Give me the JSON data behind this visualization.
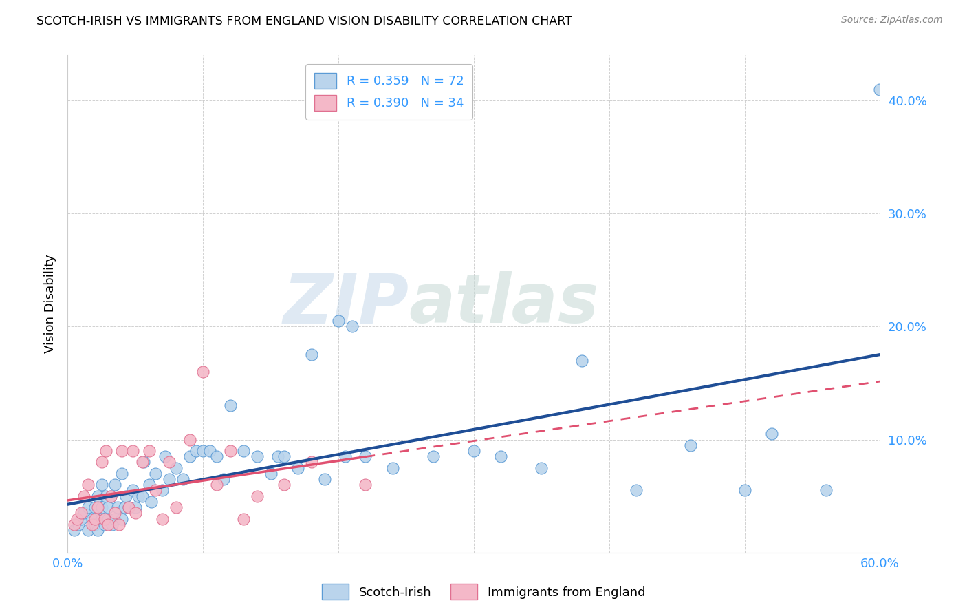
{
  "title": "SCOTCH-IRISH VS IMMIGRANTS FROM ENGLAND VISION DISABILITY CORRELATION CHART",
  "source": "Source: ZipAtlas.com",
  "ylabel": "Vision Disability",
  "yticks": [
    0.0,
    0.1,
    0.2,
    0.3,
    0.4
  ],
  "ytick_labels": [
    "",
    "10.0%",
    "20.0%",
    "30.0%",
    "40.0%"
  ],
  "xlim": [
    0.0,
    0.6
  ],
  "ylim": [
    0.0,
    0.44
  ],
  "blue_R": 0.359,
  "blue_N": 72,
  "pink_R": 0.39,
  "pink_N": 34,
  "blue_scatter_color": "#bad4ec",
  "blue_edge_color": "#5b9bd5",
  "pink_scatter_color": "#f4b8c8",
  "pink_edge_color": "#e07090",
  "blue_line_color": "#1f4e96",
  "pink_line_color": "#e05070",
  "text_color": "#3399ff",
  "legend_label_blue": "Scotch-Irish",
  "legend_label_pink": "Immigrants from England",
  "blue_scatter_x": [
    0.005,
    0.008,
    0.01,
    0.012,
    0.015,
    0.015,
    0.018,
    0.02,
    0.02,
    0.022,
    0.022,
    0.025,
    0.025,
    0.025,
    0.027,
    0.028,
    0.03,
    0.03,
    0.032,
    0.033,
    0.035,
    0.035,
    0.037,
    0.04,
    0.04,
    0.042,
    0.043,
    0.045,
    0.048,
    0.05,
    0.052,
    0.055,
    0.056,
    0.06,
    0.062,
    0.065,
    0.07,
    0.072,
    0.075,
    0.08,
    0.085,
    0.09,
    0.095,
    0.1,
    0.105,
    0.11,
    0.115,
    0.12,
    0.13,
    0.14,
    0.15,
    0.155,
    0.16,
    0.17,
    0.18,
    0.19,
    0.2,
    0.205,
    0.21,
    0.22,
    0.24,
    0.27,
    0.3,
    0.32,
    0.35,
    0.38,
    0.42,
    0.46,
    0.5,
    0.52,
    0.56,
    0.6
  ],
  "blue_scatter_y": [
    0.02,
    0.025,
    0.03,
    0.035,
    0.02,
    0.04,
    0.03,
    0.025,
    0.04,
    0.02,
    0.05,
    0.03,
    0.04,
    0.06,
    0.025,
    0.05,
    0.03,
    0.04,
    0.05,
    0.025,
    0.03,
    0.06,
    0.04,
    0.03,
    0.07,
    0.04,
    0.05,
    0.04,
    0.055,
    0.04,
    0.05,
    0.05,
    0.08,
    0.06,
    0.045,
    0.07,
    0.055,
    0.085,
    0.065,
    0.075,
    0.065,
    0.085,
    0.09,
    0.09,
    0.09,
    0.085,
    0.065,
    0.13,
    0.09,
    0.085,
    0.07,
    0.085,
    0.085,
    0.075,
    0.175,
    0.065,
    0.205,
    0.085,
    0.2,
    0.085,
    0.075,
    0.085,
    0.09,
    0.085,
    0.075,
    0.17,
    0.055,
    0.095,
    0.055,
    0.105,
    0.055,
    0.41
  ],
  "pink_scatter_x": [
    0.005,
    0.007,
    0.01,
    0.012,
    0.015,
    0.018,
    0.02,
    0.022,
    0.025,
    0.027,
    0.028,
    0.03,
    0.032,
    0.035,
    0.038,
    0.04,
    0.045,
    0.048,
    0.05,
    0.055,
    0.06,
    0.065,
    0.07,
    0.075,
    0.08,
    0.09,
    0.1,
    0.11,
    0.12,
    0.13,
    0.14,
    0.16,
    0.18,
    0.22
  ],
  "pink_scatter_y": [
    0.025,
    0.03,
    0.035,
    0.05,
    0.06,
    0.025,
    0.03,
    0.04,
    0.08,
    0.03,
    0.09,
    0.025,
    0.05,
    0.035,
    0.025,
    0.09,
    0.04,
    0.09,
    0.035,
    0.08,
    0.09,
    0.055,
    0.03,
    0.08,
    0.04,
    0.1,
    0.16,
    0.06,
    0.09,
    0.03,
    0.05,
    0.06,
    0.08,
    0.06
  ],
  "watermark": "ZIPatlas",
  "watermark_zip_color": "#c8d8ea",
  "watermark_atlas_color": "#c8d8d0"
}
